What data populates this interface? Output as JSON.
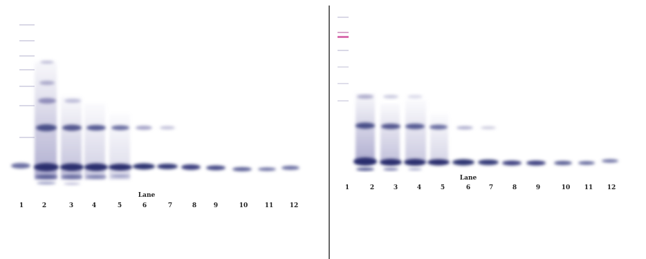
{
  "panels": [
    {
      "id": "left",
      "lane_title": "Lane",
      "lane_numbers": [
        "1",
        "2",
        "3",
        "4",
        "5",
        "6",
        "7",
        "8",
        "9",
        "10",
        "11",
        "12"
      ]
    },
    {
      "id": "right",
      "lane_title": "Lane",
      "lane_numbers": [
        "1",
        "2",
        "3",
        "4",
        "5",
        "6",
        "7",
        "8",
        "9",
        "10",
        "11",
        "12"
      ]
    }
  ],
  "colors": {
    "background": "#ffffff",
    "band_dark": "#2a2f6e",
    "band_mid": "#5a5f96",
    "smear": "#b9b8d6",
    "marker_pink": "#d04a9a",
    "divider": "#333333"
  }
}
